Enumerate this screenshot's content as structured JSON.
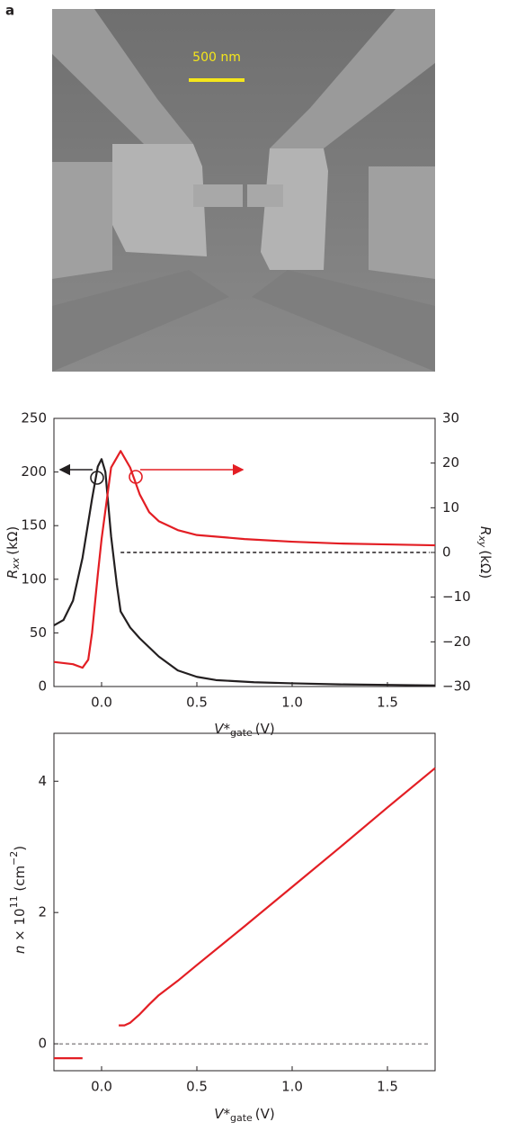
{
  "panel_label": "a",
  "scale_bar_label": "500 nm",
  "chart_data": [
    {
      "type": "line",
      "xlabel": {
        "symbol": "V*",
        "subscript": "gate",
        "unit": "(V)"
      },
      "ylabel": {
        "symbol": "R",
        "subscript": "xx",
        "unit": "(kΩ)"
      },
      "y2label": {
        "symbol": "R",
        "subscript": "xy",
        "unit": "(kΩ)"
      },
      "xlim": [
        -0.25,
        1.75
      ],
      "xticks": [
        {
          "value": 0,
          "label": "0.0"
        },
        0.5,
        {
          "value": 1,
          "label": "1.0"
        },
        1.5
      ],
      "ylim": [
        0,
        250
      ],
      "yticks": [
        0,
        50,
        100,
        150,
        200,
        250
      ],
      "y2lim": [
        -30,
        30
      ],
      "y2ticks": [
        {
          "value": -30,
          "label": "−30"
        },
        {
          "value": -20,
          "label": "−20"
        },
        {
          "value": -10,
          "label": "−10"
        },
        0,
        10,
        20,
        30
      ],
      "reference_line": {
        "value": 0,
        "axis": "y2",
        "x_start": 0.1,
        "style": "dashed"
      },
      "series": [
        {
          "name": "Rxx",
          "color": "#231f20",
          "axis": "y",
          "x": [
            -0.25,
            -0.2,
            -0.15,
            -0.1,
            -0.05,
            -0.02,
            0.0,
            0.02,
            0.05,
            0.08,
            0.1,
            0.15,
            0.2,
            0.3,
            0.4,
            0.5,
            0.6,
            0.8,
            1.0,
            1.25,
            1.5,
            1.75
          ],
          "values": [
            57,
            62,
            80,
            120,
            175,
            205,
            212,
            200,
            140,
            95,
            70,
            55,
            45,
            28,
            15,
            9,
            6,
            4,
            3,
            2,
            1.5,
            1
          ]
        },
        {
          "name": "Rxy",
          "color": "#e31e24",
          "axis": "y2",
          "x": [
            -0.25,
            -0.15,
            -0.1,
            -0.07,
            -0.05,
            -0.02,
            0.0,
            0.05,
            0.1,
            0.15,
            0.2,
            0.25,
            0.3,
            0.4,
            0.5,
            0.75,
            1.0,
            1.25,
            1.5,
            1.75
          ],
          "values": [
            -24.5,
            -25,
            -25.8,
            -24,
            -18,
            -5,
            3,
            19,
            22.7,
            19,
            13,
            9,
            7,
            5,
            3.9,
            3,
            2.4,
            2,
            1.8,
            1.6
          ]
        }
      ]
    },
    {
      "type": "line",
      "xlabel": {
        "symbol": "V*",
        "subscript": "gate",
        "unit": "(V)"
      },
      "ylabel": {
        "symbol": "n",
        "times": " × 10",
        "exponent": "11",
        "unit_open": " (cm",
        "unit_exponent": "−2",
        "unit_close": ")"
      },
      "xlim": [
        -0.25,
        1.75
      ],
      "xticks": [
        {
          "value": 0,
          "label": "0.0"
        },
        0.5,
        {
          "value": 1,
          "label": "1.0"
        },
        1.5
      ],
      "ylim": [
        -0.41,
        4.73
      ],
      "yticks": [
        0,
        2,
        4
      ],
      "reference_line": {
        "value": 0,
        "axis": "y",
        "style": "dashed"
      },
      "series": [
        {
          "name": "n",
          "color": "#e31e24",
          "axis": "y",
          "x": [
            -0.25,
            -0.1,
            null,
            0.09,
            0.12,
            0.15,
            0.2,
            0.25,
            0.3,
            0.4,
            0.5,
            0.75,
            1.0,
            1.25,
            1.5,
            1.75
          ],
          "values": [
            -0.22,
            -0.22,
            null,
            0.28,
            0.28,
            0.32,
            0.45,
            0.6,
            0.74,
            0.96,
            1.2,
            1.79,
            2.39,
            2.99,
            3.6,
            4.2
          ]
        }
      ]
    }
  ]
}
